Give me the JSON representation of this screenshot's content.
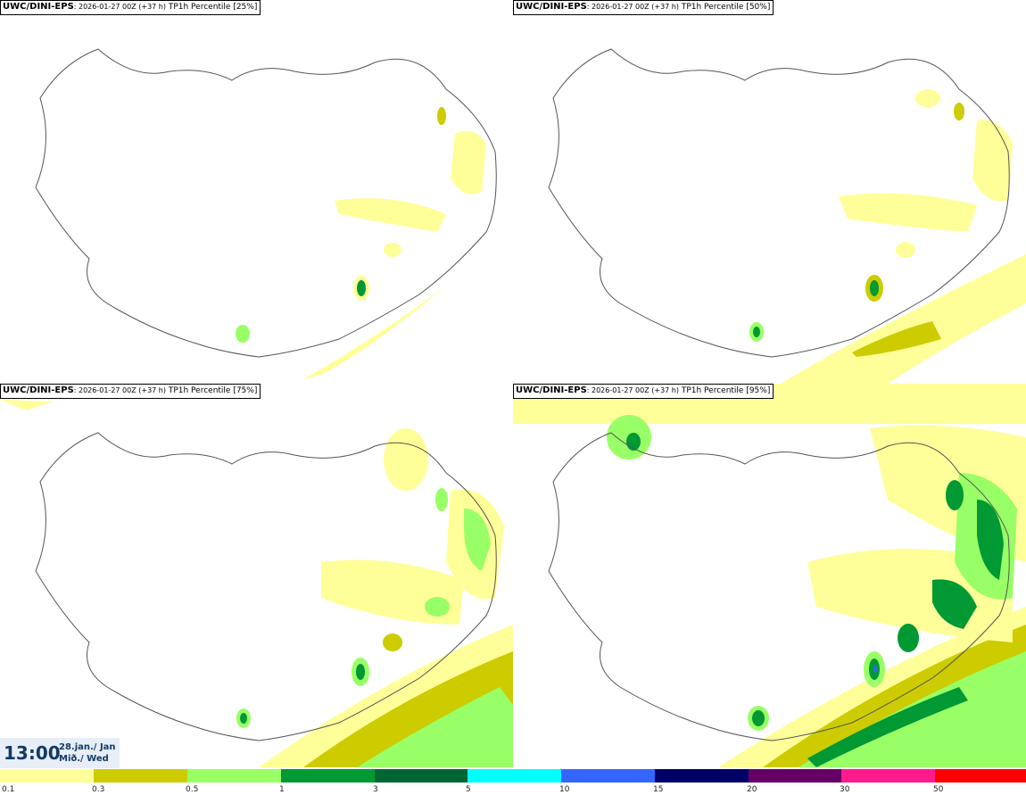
{
  "panels": [
    {
      "model": "UWC/DINI-EPS",
      "run": ": 2026-01-27 00Z (+37 h)",
      "field": " TP1h Percentile [25%]"
    },
    {
      "model": "UWC/DINI-EPS",
      "run": ": 2026-01-27 00Z (+37 h)",
      "field": " TP1h Percentile [50%]"
    },
    {
      "model": "UWC/DINI-EPS",
      "run": ": 2026-01-27 00Z (+37 h)",
      "field": " TP1h Percentile [75%]"
    },
    {
      "model": "UWC/DINI-EPS",
      "run": ": 2026-01-27 00Z (+37 h)",
      "field": " TP1h Percentile [95%]"
    }
  ],
  "time": {
    "clock": "13:00",
    "date_line1": "28.jan./ Jan",
    "date_line2": "Mið./ Wed"
  },
  "legend": {
    "labels": [
      "0.1",
      "0.3",
      "0.5",
      "1",
      "3",
      "5",
      "10",
      "15",
      "20",
      "30",
      "50"
    ],
    "colors": [
      "#ffff99",
      "#cccc00",
      "#99ff66",
      "#009933",
      "#006633",
      "#00ffff",
      "#3366ff",
      "#000066",
      "#660066",
      "#ff1a8c",
      "#ff0000"
    ]
  },
  "map_colors": {
    "light_yellow": "#ffff99",
    "olive": "#cccc00",
    "light_green": "#99ff66",
    "green": "#009933",
    "blue": "#3366ff"
  }
}
